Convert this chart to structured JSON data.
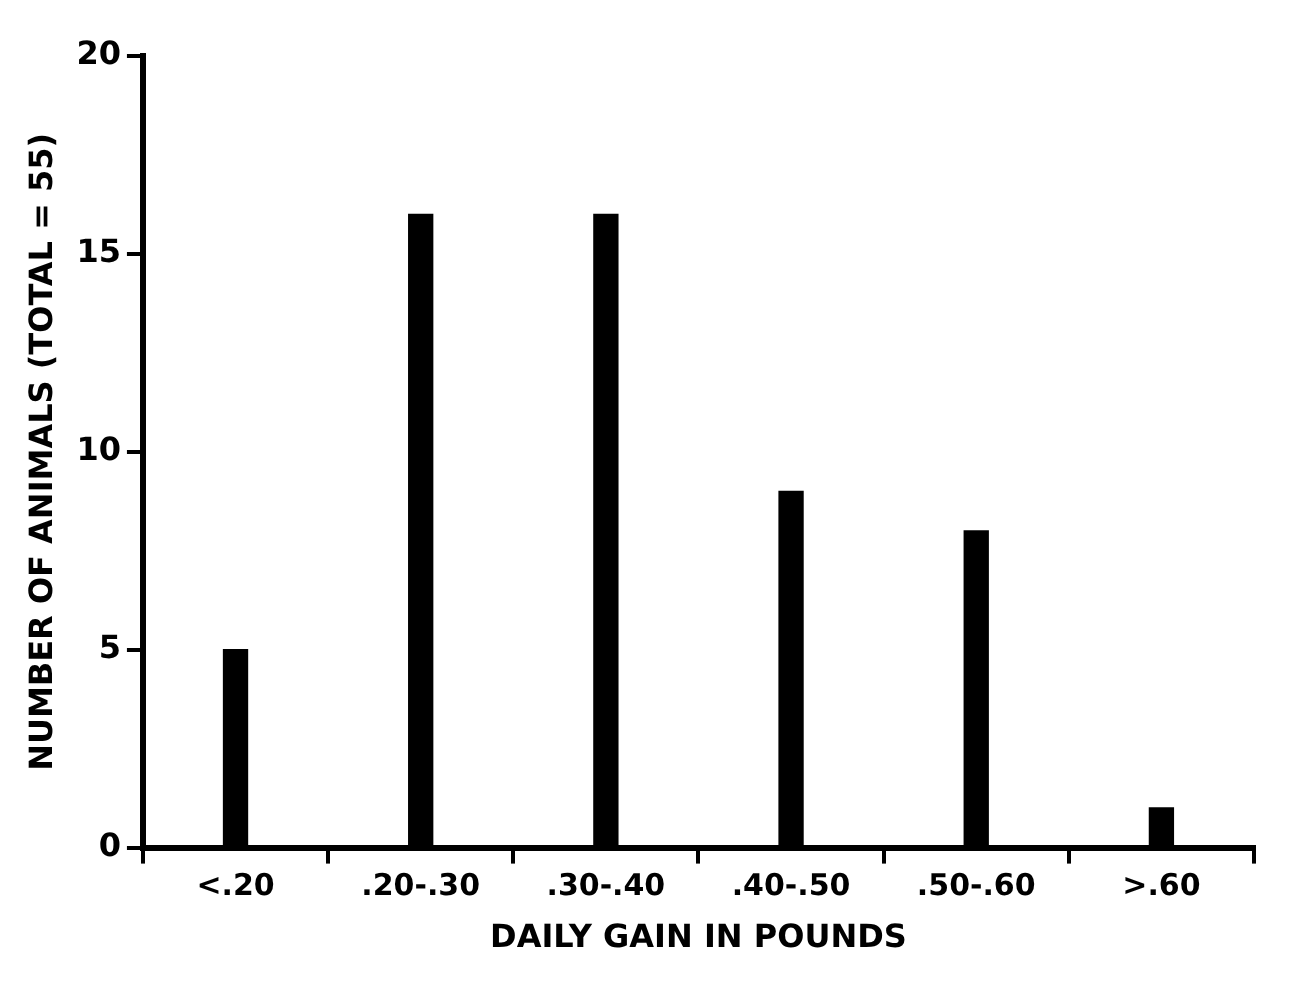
{
  "chart_data": {
    "type": "bar",
    "categories": [
      "<.20",
      ".20-.30",
      ".30-.40",
      ".40-.50",
      ".50-.60",
      ">.60"
    ],
    "values": [
      5,
      16,
      16,
      9,
      8,
      1
    ],
    "color": "#000000",
    "xlabel": "DAILY GAIN IN POUNDS",
    "ylabel": "NUMBER OF ANIMALS (TOTAL = 55)",
    "ylim": [
      0,
      20
    ],
    "yticks": [
      0,
      5,
      10,
      15,
      20
    ],
    "grid": false,
    "legend": false
  }
}
